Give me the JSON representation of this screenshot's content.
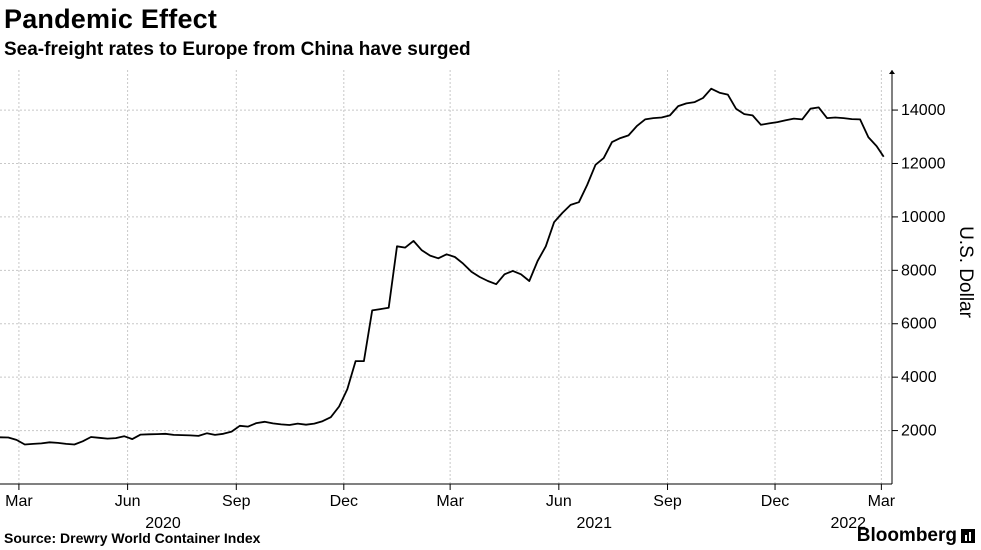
{
  "title": "Pandemic Effect",
  "subtitle": "Sea-freight rates to Europe from China have surged",
  "source": "Source: Drewry World Container Index",
  "brand": "Bloomberg",
  "chart_data": {
    "type": "line",
    "ylabel": "U.S. Dollar",
    "ylim": [
      0,
      15500
    ],
    "y_ticks": [
      2000,
      4000,
      6000,
      8000,
      10000,
      12000,
      14000
    ],
    "y_axis_side": "right",
    "grid": true,
    "line_color": "#000000",
    "x_range": [
      "2020-02-14",
      "2022-03-10"
    ],
    "x_ticks": [
      {
        "date": "2020-03-01",
        "label": "Mar"
      },
      {
        "date": "2020-06-01",
        "label": "Jun"
      },
      {
        "date": "2020-09-01",
        "label": "Sep"
      },
      {
        "date": "2020-12-01",
        "label": "Dec"
      },
      {
        "date": "2021-03-01",
        "label": "Mar"
      },
      {
        "date": "2021-06-01",
        "label": "Jun"
      },
      {
        "date": "2021-09-01",
        "label": "Sep"
      },
      {
        "date": "2021-12-01",
        "label": "Dec"
      },
      {
        "date": "2022-03-01",
        "label": "Mar"
      }
    ],
    "year_labels": [
      {
        "date": "2020-07-01",
        "label": "2020"
      },
      {
        "date": "2021-07-01",
        "label": "2021"
      },
      {
        "date": "2022-02-01",
        "label": "2022"
      }
    ],
    "series": [
      {
        "points": [
          [
            "2020-02-14",
            1750
          ],
          [
            "2020-02-21",
            1740
          ],
          [
            "2020-02-28",
            1650
          ],
          [
            "2020-03-06",
            1480
          ],
          [
            "2020-03-13",
            1500
          ],
          [
            "2020-03-20",
            1520
          ],
          [
            "2020-03-27",
            1560
          ],
          [
            "2020-04-03",
            1540
          ],
          [
            "2020-04-10",
            1500
          ],
          [
            "2020-04-17",
            1480
          ],
          [
            "2020-04-24",
            1600
          ],
          [
            "2020-05-01",
            1760
          ],
          [
            "2020-05-08",
            1730
          ],
          [
            "2020-05-15",
            1700
          ],
          [
            "2020-05-22",
            1720
          ],
          [
            "2020-05-29",
            1790
          ],
          [
            "2020-06-05",
            1680
          ],
          [
            "2020-06-12",
            1850
          ],
          [
            "2020-06-19",
            1860
          ],
          [
            "2020-06-26",
            1870
          ],
          [
            "2020-07-03",
            1880
          ],
          [
            "2020-07-10",
            1840
          ],
          [
            "2020-07-17",
            1830
          ],
          [
            "2020-07-24",
            1820
          ],
          [
            "2020-07-31",
            1800
          ],
          [
            "2020-08-07",
            1900
          ],
          [
            "2020-08-14",
            1840
          ],
          [
            "2020-08-21",
            1880
          ],
          [
            "2020-08-28",
            1960
          ],
          [
            "2020-09-04",
            2180
          ],
          [
            "2020-09-11",
            2150
          ],
          [
            "2020-09-18",
            2280
          ],
          [
            "2020-09-25",
            2330
          ],
          [
            "2020-10-02",
            2270
          ],
          [
            "2020-10-09",
            2230
          ],
          [
            "2020-10-16",
            2210
          ],
          [
            "2020-10-23",
            2260
          ],
          [
            "2020-10-30",
            2220
          ],
          [
            "2020-11-06",
            2260
          ],
          [
            "2020-11-13",
            2350
          ],
          [
            "2020-11-20",
            2500
          ],
          [
            "2020-11-27",
            2900
          ],
          [
            "2020-12-04",
            3550
          ],
          [
            "2020-12-11",
            4600
          ],
          [
            "2020-12-18",
            4600
          ],
          [
            "2020-12-25",
            6500
          ],
          [
            "2021-01-01",
            6550
          ],
          [
            "2021-01-08",
            6600
          ],
          [
            "2021-01-15",
            8900
          ],
          [
            "2021-01-22",
            8850
          ],
          [
            "2021-01-29",
            9100
          ],
          [
            "2021-02-05",
            8750
          ],
          [
            "2021-02-12",
            8550
          ],
          [
            "2021-02-19",
            8450
          ],
          [
            "2021-02-26",
            8600
          ],
          [
            "2021-03-05",
            8500
          ],
          [
            "2021-03-12",
            8250
          ],
          [
            "2021-03-19",
            7950
          ],
          [
            "2021-03-26",
            7750
          ],
          [
            "2021-04-02",
            7600
          ],
          [
            "2021-04-09",
            7480
          ],
          [
            "2021-04-16",
            7850
          ],
          [
            "2021-04-23",
            7980
          ],
          [
            "2021-04-30",
            7850
          ],
          [
            "2021-05-07",
            7600
          ],
          [
            "2021-05-14",
            8350
          ],
          [
            "2021-05-21",
            8900
          ],
          [
            "2021-05-28",
            9800
          ],
          [
            "2021-06-04",
            10150
          ],
          [
            "2021-06-11",
            10450
          ],
          [
            "2021-06-18",
            10550
          ],
          [
            "2021-06-25",
            11200
          ],
          [
            "2021-07-02",
            11950
          ],
          [
            "2021-07-09",
            12200
          ],
          [
            "2021-07-16",
            12800
          ],
          [
            "2021-07-23",
            12950
          ],
          [
            "2021-07-30",
            13050
          ],
          [
            "2021-08-06",
            13400
          ],
          [
            "2021-08-13",
            13650
          ],
          [
            "2021-08-20",
            13700
          ],
          [
            "2021-08-27",
            13720
          ],
          [
            "2021-09-03",
            13800
          ],
          [
            "2021-09-10",
            14150
          ],
          [
            "2021-09-17",
            14250
          ],
          [
            "2021-09-24",
            14300
          ],
          [
            "2021-10-01",
            14450
          ],
          [
            "2021-10-08",
            14800
          ],
          [
            "2021-10-15",
            14650
          ],
          [
            "2021-10-22",
            14580
          ],
          [
            "2021-10-29",
            14050
          ],
          [
            "2021-11-05",
            13850
          ],
          [
            "2021-11-12",
            13800
          ],
          [
            "2021-11-19",
            13450
          ],
          [
            "2021-11-26",
            13500
          ],
          [
            "2021-12-03",
            13550
          ],
          [
            "2021-12-10",
            13620
          ],
          [
            "2021-12-17",
            13680
          ],
          [
            "2021-12-24",
            13650
          ],
          [
            "2021-12-31",
            14050
          ],
          [
            "2022-01-07",
            14100
          ],
          [
            "2022-01-14",
            13700
          ],
          [
            "2022-01-21",
            13720
          ],
          [
            "2022-01-28",
            13700
          ],
          [
            "2022-02-04",
            13660
          ],
          [
            "2022-02-11",
            13650
          ],
          [
            "2022-02-18",
            12980
          ],
          [
            "2022-02-25",
            12650
          ],
          [
            "2022-03-03",
            12250
          ]
        ]
      }
    ]
  }
}
